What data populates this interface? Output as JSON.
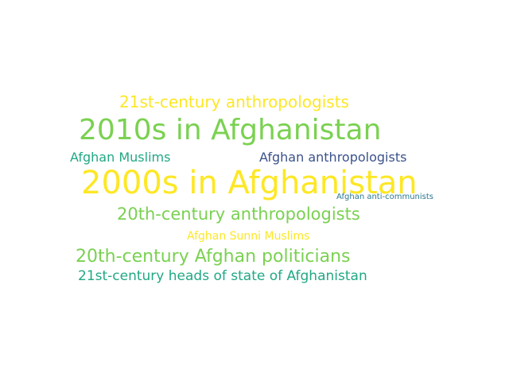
{
  "words": [
    {
      "text": "21st-century anthropologists",
      "color": "#fde725"
    },
    {
      "text": "2010s in Afghanistan",
      "color": "#7ad151"
    },
    {
      "text": "Afghan Muslims",
      "color": "#22a884"
    },
    {
      "text": "Afghan anthropologists",
      "color": "#3b528b"
    },
    {
      "text": "2000s in Afghanistan",
      "color": "#fde725"
    },
    {
      "text": "Afghan anti-communists",
      "color": "#2a788e"
    },
    {
      "text": "20th-century anthropologists",
      "color": "#7ad151"
    },
    {
      "text": "Afghan Sunni Muslims",
      "color": "#fde725"
    },
    {
      "text": "20th-century Afghan politicians",
      "color": "#7ad151"
    },
    {
      "text": "21st-century heads of state of Afghanistan",
      "color": "#22a884"
    }
  ]
}
